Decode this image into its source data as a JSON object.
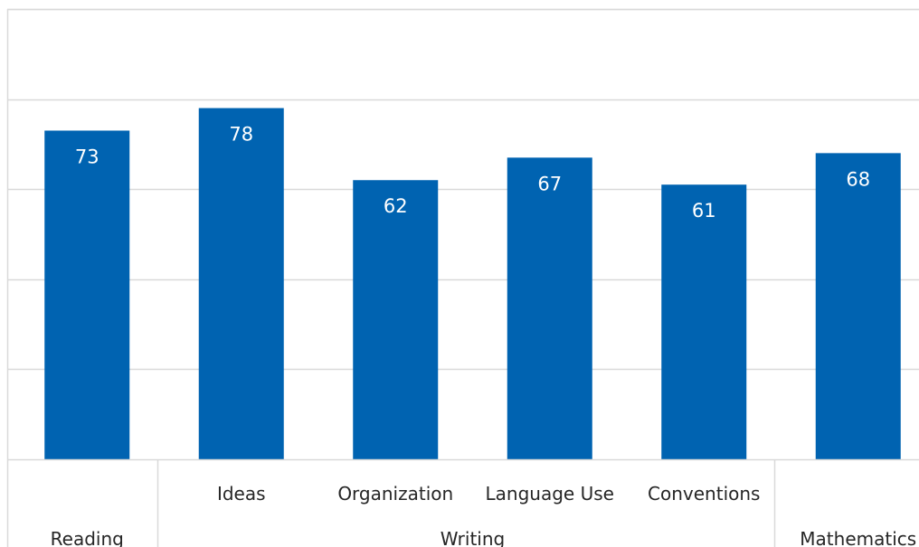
{
  "chart_data": {
    "type": "bar",
    "title": "",
    "xlabel": "",
    "ylabel": "",
    "ylim": [
      0,
      100
    ],
    "grid": true,
    "legend": "none",
    "bar_color": "#0063B1",
    "grid_color": "#D9D9D9",
    "label_color": "#FFFFFF",
    "axis_text_color": "#262626",
    "categories": [
      "",
      "Ideas",
      "Organization",
      "Language Use",
      "Conventions",
      ""
    ],
    "groups": [
      {
        "label": "Reading",
        "start": 0,
        "end": 0
      },
      {
        "label": "Writing",
        "start": 1,
        "end": 4
      },
      {
        "label": "Mathematics",
        "start": 5,
        "end": 5
      }
    ],
    "values": [
      73,
      78,
      62,
      67,
      61,
      68
    ]
  }
}
